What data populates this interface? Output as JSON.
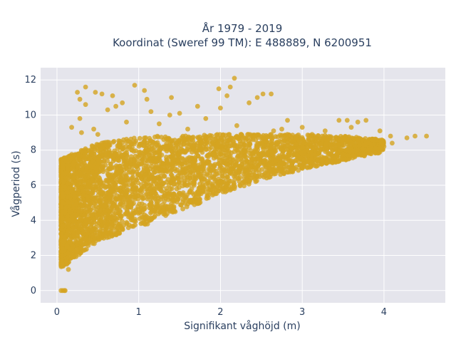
{
  "chart_data": {
    "type": "scatter",
    "title_lines": [
      "År 1979 - 2019",
      "Koordinat (Sweref 99 TM): E 488889, N 6200951"
    ],
    "xlabel": "Signifikant våghöjd (m)",
    "ylabel": "Vågperiod (s)",
    "xlim": [
      -0.2,
      4.75
    ],
    "ylim": [
      -0.7,
      12.7
    ],
    "xticks": [
      0,
      1,
      2,
      3,
      4
    ],
    "yticks": [
      0,
      2,
      4,
      6,
      8,
      10,
      12
    ],
    "grid": true,
    "marker_color": "#D4A421",
    "plot_background": "#E5E5EC",
    "outliers": [
      [
        0.05,
        0
      ],
      [
        0.07,
        0
      ],
      [
        0.09,
        0
      ],
      [
        0.1,
        0
      ],
      [
        0.25,
        11.3
      ],
      [
        0.28,
        10.9
      ],
      [
        0.35,
        11.6
      ],
      [
        0.47,
        11.3
      ],
      [
        0.55,
        11.2
      ],
      [
        0.68,
        11.1
      ],
      [
        0.95,
        11.7
      ],
      [
        1.07,
        11.4
      ],
      [
        1.15,
        10.2
      ],
      [
        1.38,
        10.0
      ],
      [
        1.5,
        10.1
      ],
      [
        1.4,
        11.0
      ],
      [
        1.72,
        10.5
      ],
      [
        1.98,
        11.5
      ],
      [
        2.12,
        11.6
      ],
      [
        2.17,
        12.1
      ],
      [
        2.08,
        11.1
      ],
      [
        2.35,
        10.7
      ],
      [
        2.52,
        11.2
      ],
      [
        2.62,
        11.2
      ],
      [
        2.82,
        9.7
      ],
      [
        2.75,
        9.2
      ],
      [
        0.62,
        10.3
      ],
      [
        0.72,
        10.5
      ],
      [
        0.18,
        9.3
      ],
      [
        0.28,
        9.8
      ],
      [
        0.45,
        9.2
      ],
      [
        0.85,
        9.6
      ],
      [
        1.25,
        9.5
      ],
      [
        1.82,
        9.8
      ],
      [
        3.95,
        9.1
      ],
      [
        4.08,
        8.8
      ],
      [
        4.38,
        8.8
      ],
      [
        4.52,
        8.8
      ],
      [
        4.28,
        8.7
      ],
      [
        3.55,
        9.7
      ],
      [
        3.68,
        9.6
      ],
      [
        3.78,
        9.7
      ],
      [
        3.45,
        9.7
      ],
      [
        3.6,
        9.3
      ],
      [
        3.12,
        8.9
      ],
      [
        3.28,
        9.1
      ],
      [
        2.92,
        8.7
      ],
      [
        2.65,
        9.1
      ],
      [
        2.25,
        8.9
      ],
      [
        4.1,
        8.4
      ],
      [
        3.9,
        8.1
      ],
      [
        3.75,
        7.7
      ],
      [
        2.2,
        9.4
      ],
      [
        1.6,
        9.2
      ],
      [
        0.35,
        10.6
      ],
      [
        2.0,
        10.4
      ],
      [
        2.45,
        11.0
      ],
      [
        1.1,
        10.9
      ],
      [
        0.8,
        10.7
      ],
      [
        0.12,
        1.5
      ],
      [
        0.14,
        1.2
      ],
      [
        0.3,
        9.0
      ],
      [
        0.5,
        8.9
      ],
      [
        3.0,
        9.3
      ]
    ],
    "dense_region": {
      "h_range": [
        0.05,
        4.0
      ],
      "lower_bound": [
        [
          0.05,
          1.3
        ],
        [
          0.5,
          2.8
        ],
        [
          1.0,
          3.6
        ],
        [
          1.5,
          4.5
        ],
        [
          2.0,
          5.5
        ],
        [
          2.5,
          6.3
        ],
        [
          3.0,
          6.9
        ],
        [
          3.5,
          7.4
        ],
        [
          4.0,
          7.9
        ]
      ],
      "upper_bound": [
        [
          0.05,
          7.5
        ],
        [
          0.5,
          8.4
        ],
        [
          1.0,
          8.8
        ],
        [
          1.5,
          8.8
        ],
        [
          2.0,
          8.9
        ],
        [
          2.5,
          8.9
        ],
        [
          3.0,
          8.9
        ],
        [
          3.5,
          8.8
        ],
        [
          4.0,
          8.6
        ]
      ]
    }
  }
}
